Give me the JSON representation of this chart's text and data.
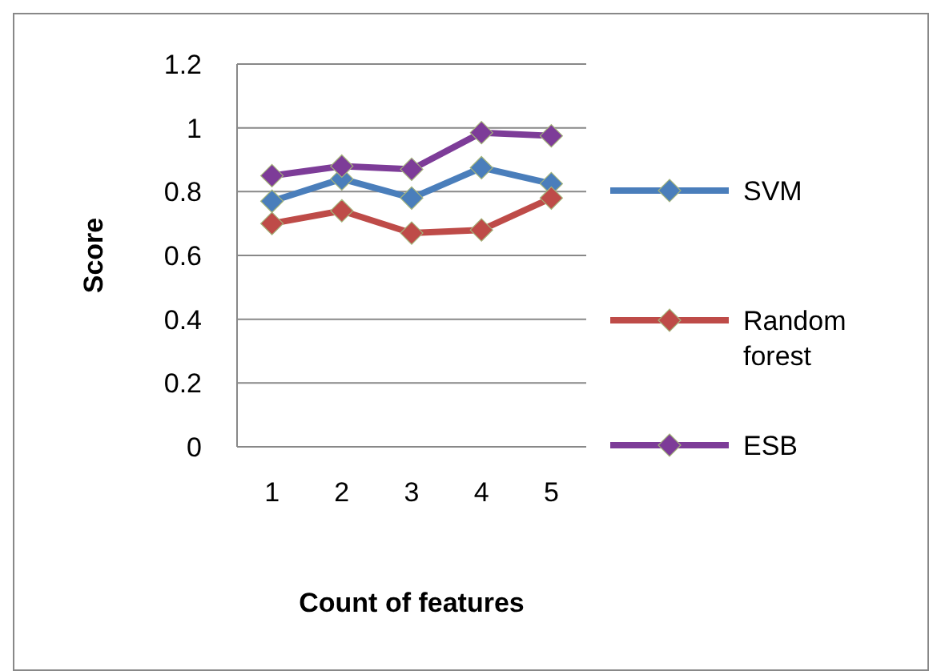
{
  "chart_data": {
    "type": "line",
    "xlabel": "Count of features",
    "ylabel": "Score",
    "categories": [
      "1",
      "2",
      "3",
      "4",
      "5"
    ],
    "series": [
      {
        "name": "SVM",
        "color": "#4a7ebb",
        "values": [
          0.77,
          0.84,
          0.78,
          0.875,
          0.825
        ]
      },
      {
        "name": "Random forest",
        "color": "#be4b48",
        "values": [
          0.7,
          0.74,
          0.67,
          0.68,
          0.78
        ]
      },
      {
        "name": "ESB",
        "color": "#7d3c98",
        "values": [
          0.85,
          0.88,
          0.87,
          0.985,
          0.975
        ]
      }
    ],
    "ylim": [
      0,
      1.2
    ],
    "yticks": [
      0,
      0.2,
      0.4,
      0.6,
      0.8,
      1,
      1.2
    ],
    "grid": "y",
    "legend": "right",
    "marker": "diamond",
    "line_style": "solid"
  }
}
